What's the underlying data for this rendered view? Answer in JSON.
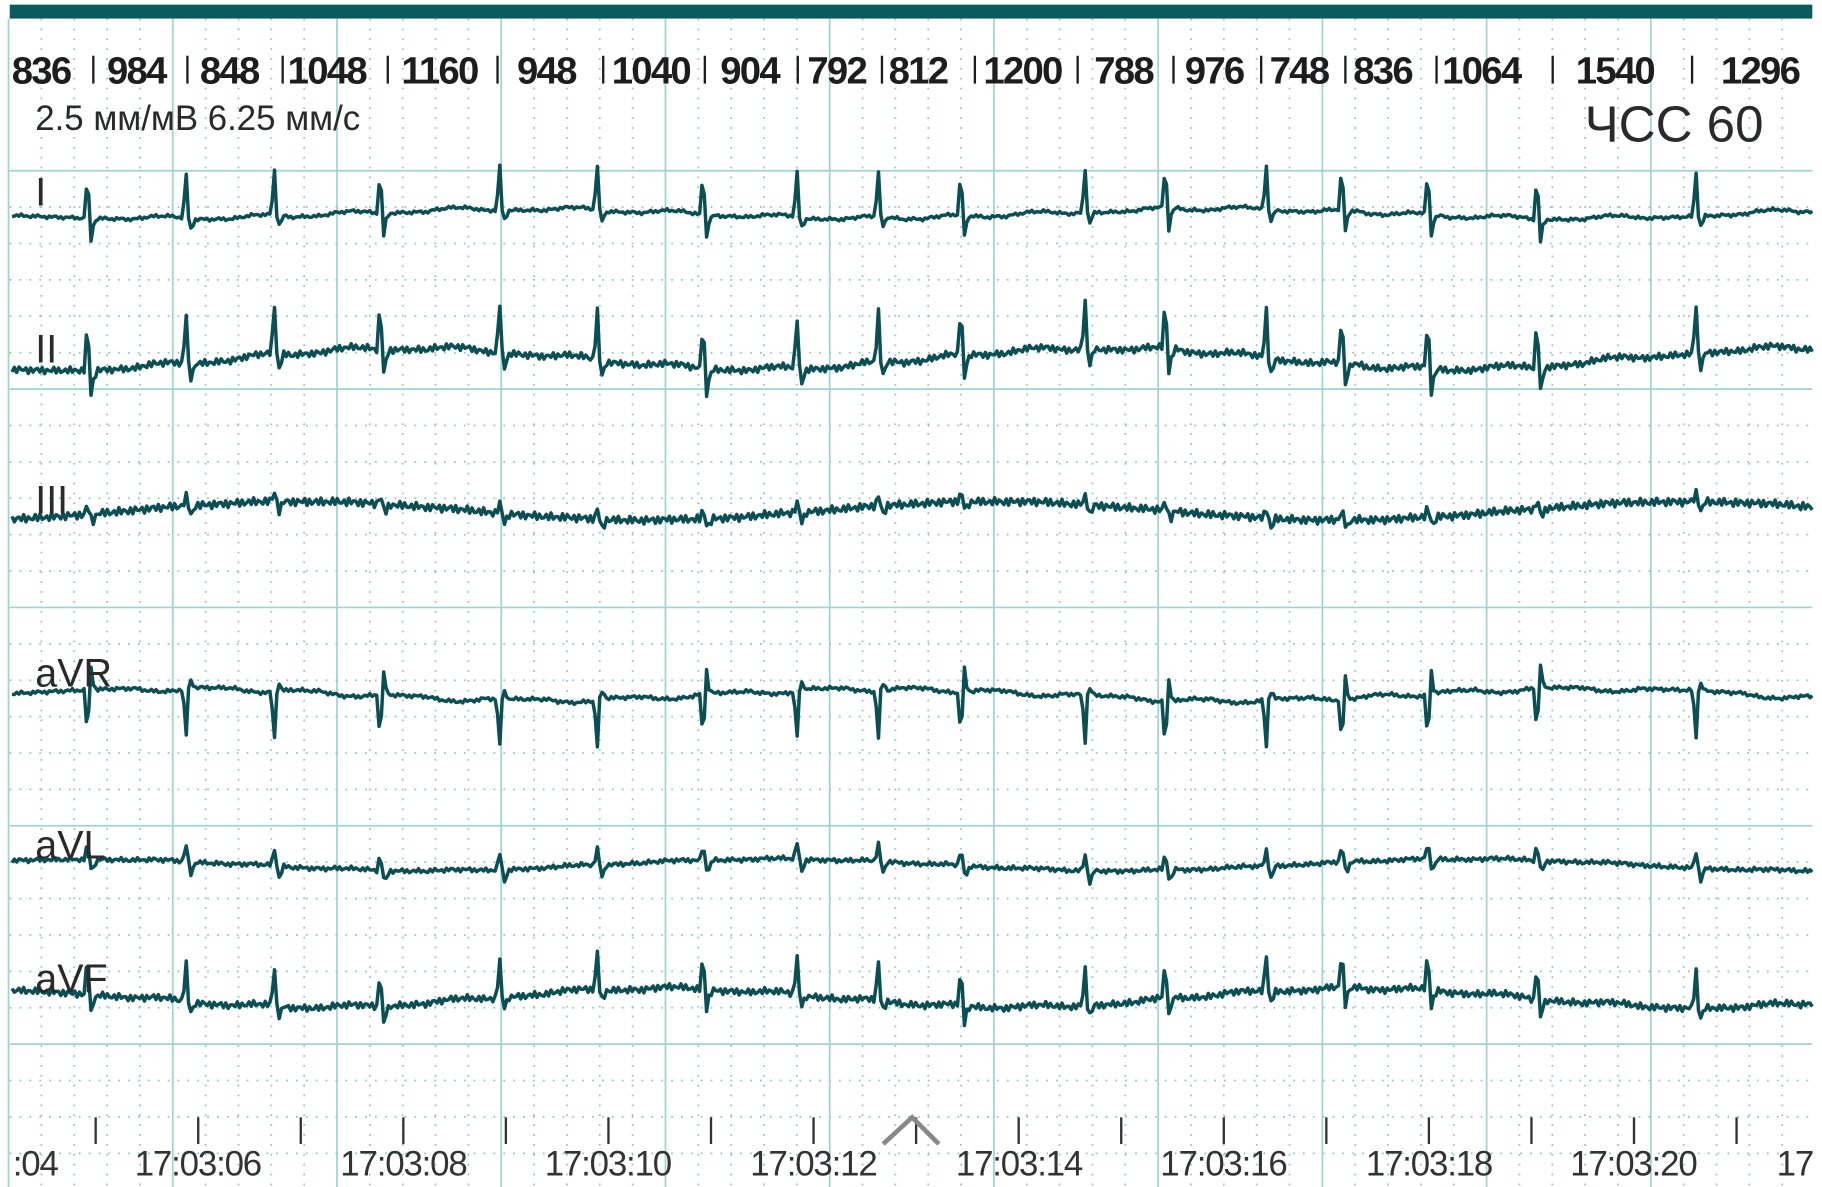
{
  "rr_intervals": [
    836,
    984,
    848,
    1048,
    1160,
    948,
    1040,
    904,
    792,
    812,
    1200,
    788,
    976,
    748,
    836,
    1064,
    1540,
    1296
  ],
  "calibration": "2.5 мм/мВ  6.25 мм/с",
  "heart_rate": "ЧСС 60",
  "leads": [
    "I",
    "II",
    "III",
    "aVR",
    "aVL",
    "aVF"
  ],
  "time_labels": [
    ":04",
    "17:03:06",
    "17:03:08",
    "17:03:10",
    "17:03:12",
    "17:03:14",
    "17:03:16",
    "17:03:18",
    "17:03:20",
    "17"
  ]
}
